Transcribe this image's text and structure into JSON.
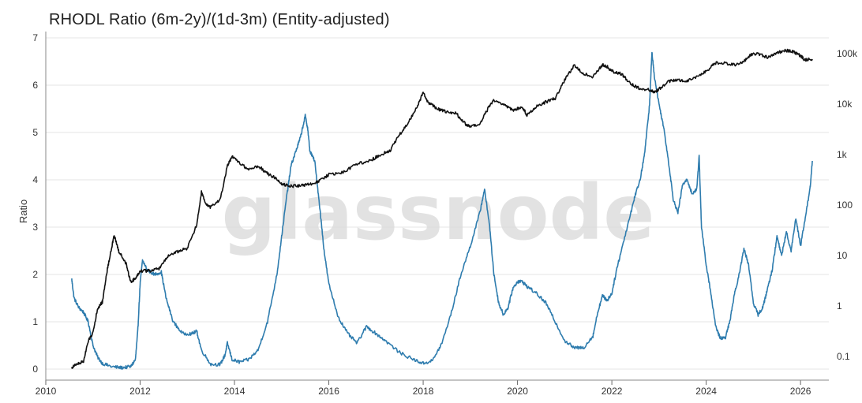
{
  "chart_data": {
    "type": "line",
    "title": "RHODL Ratio (6m-2y)/(1d-3m) (Entity-adjusted)",
    "ylabel": "Ratio",
    "ylabel_right": "",
    "watermark": "glassnode",
    "x_tick_labels": [
      "2010",
      "2012",
      "2014",
      "2016",
      "2018",
      "2020",
      "2022",
      "2024",
      "2026"
    ],
    "y_tick_labels": [
      "0",
      "1",
      "2",
      "3",
      "4",
      "5",
      "6",
      "7"
    ],
    "y2_tick_labels": [
      "0.1",
      "1",
      "10",
      "100",
      "1k",
      "10k",
      "100k"
    ],
    "ylim": [
      0,
      7
    ],
    "y2_log_range": [
      0.1,
      100000
    ],
    "xlim": [
      2010.0,
      2026.6
    ],
    "grid": true,
    "series": [
      {
        "color": "#2e7cae",
        "axis": "left",
        "points": [
          [
            2010.55,
            1.9
          ],
          [
            2010.6,
            1.5
          ],
          [
            2010.7,
            1.3
          ],
          [
            2010.8,
            1.2
          ],
          [
            2010.9,
            1.0
          ],
          [
            2011.0,
            0.5
          ],
          [
            2011.1,
            0.25
          ],
          [
            2011.2,
            0.12
          ],
          [
            2011.4,
            0.05
          ],
          [
            2011.6,
            0.03
          ],
          [
            2011.8,
            0.05
          ],
          [
            2011.9,
            0.2
          ],
          [
            2011.95,
            0.8
          ],
          [
            2012.0,
            1.8
          ],
          [
            2012.05,
            2.3
          ],
          [
            2012.15,
            2.1
          ],
          [
            2012.3,
            2.0
          ],
          [
            2012.45,
            2.05
          ],
          [
            2012.55,
            1.5
          ],
          [
            2012.7,
            1.0
          ],
          [
            2012.9,
            0.75
          ],
          [
            2013.1,
            0.75
          ],
          [
            2013.2,
            0.8
          ],
          [
            2013.3,
            0.4
          ],
          [
            2013.5,
            0.1
          ],
          [
            2013.7,
            0.1
          ],
          [
            2013.8,
            0.3
          ],
          [
            2013.85,
            0.55
          ],
          [
            2013.95,
            0.2
          ],
          [
            2014.1,
            0.15
          ],
          [
            2014.3,
            0.2
          ],
          [
            2014.5,
            0.4
          ],
          [
            2014.7,
            1.0
          ],
          [
            2014.9,
            2.0
          ],
          [
            2015.0,
            2.8
          ],
          [
            2015.1,
            3.6
          ],
          [
            2015.2,
            4.3
          ],
          [
            2015.3,
            4.6
          ],
          [
            2015.4,
            4.9
          ],
          [
            2015.5,
            5.35
          ],
          [
            2015.55,
            5.1
          ],
          [
            2015.6,
            4.6
          ],
          [
            2015.7,
            4.4
          ],
          [
            2015.8,
            3.5
          ],
          [
            2015.9,
            2.5
          ],
          [
            2016.0,
            1.8
          ],
          [
            2016.2,
            1.1
          ],
          [
            2016.4,
            0.75
          ],
          [
            2016.6,
            0.55
          ],
          [
            2016.8,
            0.9
          ],
          [
            2017.0,
            0.75
          ],
          [
            2017.2,
            0.6
          ],
          [
            2017.5,
            0.35
          ],
          [
            2017.8,
            0.2
          ],
          [
            2018.0,
            0.12
          ],
          [
            2018.2,
            0.18
          ],
          [
            2018.4,
            0.55
          ],
          [
            2018.6,
            1.2
          ],
          [
            2018.8,
            2.0
          ],
          [
            2019.0,
            2.6
          ],
          [
            2019.2,
            3.3
          ],
          [
            2019.3,
            3.8
          ],
          [
            2019.4,
            3.1
          ],
          [
            2019.5,
            2.0
          ],
          [
            2019.6,
            1.4
          ],
          [
            2019.7,
            1.15
          ],
          [
            2019.8,
            1.3
          ],
          [
            2019.9,
            1.7
          ],
          [
            2020.0,
            1.85
          ],
          [
            2020.1,
            1.85
          ],
          [
            2020.2,
            1.75
          ],
          [
            2020.4,
            1.6
          ],
          [
            2020.6,
            1.4
          ],
          [
            2020.8,
            1.0
          ],
          [
            2021.0,
            0.6
          ],
          [
            2021.2,
            0.45
          ],
          [
            2021.4,
            0.45
          ],
          [
            2021.6,
            0.7
          ],
          [
            2021.7,
            1.2
          ],
          [
            2021.8,
            1.55
          ],
          [
            2021.9,
            1.45
          ],
          [
            2022.0,
            1.6
          ],
          [
            2022.1,
            2.1
          ],
          [
            2022.2,
            2.5
          ],
          [
            2022.4,
            3.3
          ],
          [
            2022.5,
            3.7
          ],
          [
            2022.6,
            4.0
          ],
          [
            2022.7,
            4.6
          ],
          [
            2022.8,
            5.6
          ],
          [
            2022.85,
            6.7
          ],
          [
            2022.9,
            6.2
          ],
          [
            2023.0,
            5.6
          ],
          [
            2023.1,
            5.1
          ],
          [
            2023.2,
            4.4
          ],
          [
            2023.3,
            3.6
          ],
          [
            2023.4,
            3.3
          ],
          [
            2023.5,
            3.9
          ],
          [
            2023.6,
            4.0
          ],
          [
            2023.7,
            3.7
          ],
          [
            2023.8,
            3.8
          ],
          [
            2023.85,
            4.5
          ],
          [
            2023.9,
            3.0
          ],
          [
            2024.0,
            2.2
          ],
          [
            2024.1,
            1.6
          ],
          [
            2024.2,
            0.9
          ],
          [
            2024.3,
            0.65
          ],
          [
            2024.4,
            0.65
          ],
          [
            2024.5,
            1.0
          ],
          [
            2024.6,
            1.6
          ],
          [
            2024.7,
            2.0
          ],
          [
            2024.8,
            2.55
          ],
          [
            2024.9,
            2.2
          ],
          [
            2025.0,
            1.4
          ],
          [
            2025.1,
            1.15
          ],
          [
            2025.2,
            1.3
          ],
          [
            2025.3,
            1.7
          ],
          [
            2025.4,
            2.1
          ],
          [
            2025.5,
            2.8
          ],
          [
            2025.6,
            2.4
          ],
          [
            2025.7,
            2.9
          ],
          [
            2025.8,
            2.5
          ],
          [
            2025.9,
            3.2
          ],
          [
            2026.0,
            2.6
          ],
          [
            2026.1,
            3.2
          ],
          [
            2026.2,
            3.8
          ],
          [
            2026.25,
            4.4
          ]
        ]
      },
      {
        "color": "#111111",
        "axis": "right",
        "points": [
          [
            2010.55,
            0.06
          ],
          [
            2010.65,
            0.07
          ],
          [
            2010.8,
            0.08
          ],
          [
            2010.9,
            0.2
          ],
          [
            2011.0,
            0.3
          ],
          [
            2011.1,
            0.9
          ],
          [
            2011.2,
            1.2
          ],
          [
            2011.3,
            5
          ],
          [
            2011.4,
            15
          ],
          [
            2011.45,
            25
          ],
          [
            2011.55,
            12
          ],
          [
            2011.7,
            7
          ],
          [
            2011.8,
            3
          ],
          [
            2011.9,
            3.5
          ],
          [
            2012.0,
            5
          ],
          [
            2012.2,
            5
          ],
          [
            2012.4,
            5.5
          ],
          [
            2012.6,
            10
          ],
          [
            2012.8,
            12
          ],
          [
            2013.0,
            14
          ],
          [
            2013.2,
            40
          ],
          [
            2013.3,
            180
          ],
          [
            2013.4,
            100
          ],
          [
            2013.5,
            90
          ],
          [
            2013.7,
            130
          ],
          [
            2013.85,
            600
          ],
          [
            2013.95,
            900
          ],
          [
            2014.1,
            700
          ],
          [
            2014.3,
            500
          ],
          [
            2014.5,
            600
          ],
          [
            2014.7,
            420
          ],
          [
            2014.9,
            330
          ],
          [
            2015.0,
            260
          ],
          [
            2015.2,
            240
          ],
          [
            2015.4,
            240
          ],
          [
            2015.6,
            260
          ],
          [
            2015.8,
            300
          ],
          [
            2016.0,
            400
          ],
          [
            2016.3,
            450
          ],
          [
            2016.6,
            650
          ],
          [
            2016.9,
            780
          ],
          [
            2017.1,
            1000
          ],
          [
            2017.3,
            1200
          ],
          [
            2017.5,
            2500
          ],
          [
            2017.7,
            4500
          ],
          [
            2017.9,
            10000
          ],
          [
            2018.0,
            17000
          ],
          [
            2018.1,
            11000
          ],
          [
            2018.3,
            8000
          ],
          [
            2018.5,
            7000
          ],
          [
            2018.7,
            6500
          ],
          [
            2018.9,
            4000
          ],
          [
            2019.0,
            3500
          ],
          [
            2019.2,
            4000
          ],
          [
            2019.4,
            9000
          ],
          [
            2019.5,
            12000
          ],
          [
            2019.7,
            10000
          ],
          [
            2019.9,
            7500
          ],
          [
            2020.1,
            9000
          ],
          [
            2020.2,
            6000
          ],
          [
            2020.4,
            9000
          ],
          [
            2020.6,
            11000
          ],
          [
            2020.8,
            13000
          ],
          [
            2021.0,
            30000
          ],
          [
            2021.2,
            58000
          ],
          [
            2021.4,
            40000
          ],
          [
            2021.6,
            35000
          ],
          [
            2021.8,
            60000
          ],
          [
            2021.9,
            55000
          ],
          [
            2022.0,
            45000
          ],
          [
            2022.2,
            40000
          ],
          [
            2022.4,
            25000
          ],
          [
            2022.6,
            20000
          ],
          [
            2022.8,
            19000
          ],
          [
            2022.9,
            17000
          ],
          [
            2023.0,
            20000
          ],
          [
            2023.2,
            28000
          ],
          [
            2023.4,
            30000
          ],
          [
            2023.6,
            29000
          ],
          [
            2023.8,
            35000
          ],
          [
            2024.0,
            45000
          ],
          [
            2024.2,
            65000
          ],
          [
            2024.4,
            65000
          ],
          [
            2024.6,
            60000
          ],
          [
            2024.8,
            70000
          ],
          [
            2024.95,
            95000
          ],
          [
            2025.1,
            100000
          ],
          [
            2025.3,
            85000
          ],
          [
            2025.5,
            105000
          ],
          [
            2025.7,
            115000
          ],
          [
            2025.85,
            110000
          ],
          [
            2026.0,
            90000
          ],
          [
            2026.1,
            75000
          ],
          [
            2026.25,
            78000
          ]
        ]
      }
    ]
  }
}
